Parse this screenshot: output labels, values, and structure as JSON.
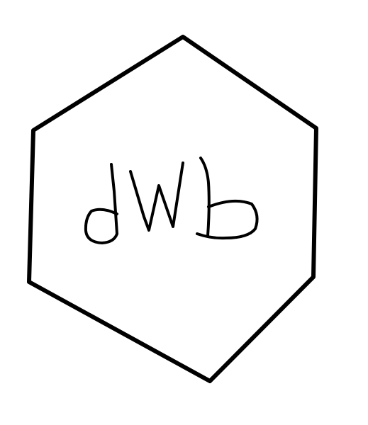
{
  "drawing": {
    "handwritten_text": "dwb",
    "shape": "hexagon",
    "stroke_color": "#000000",
    "background_color": "#ffffff"
  }
}
